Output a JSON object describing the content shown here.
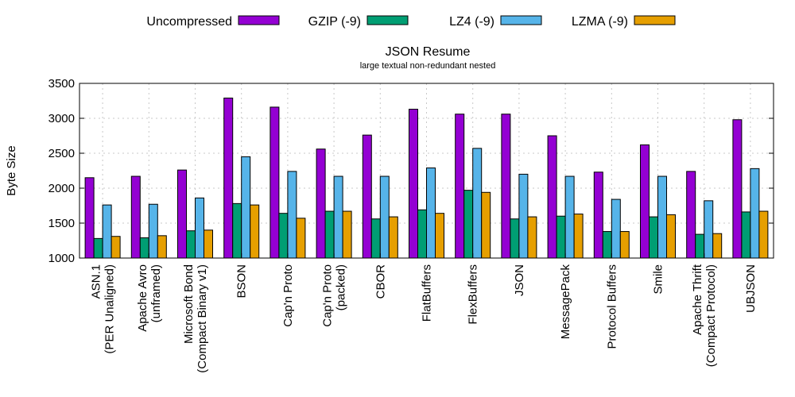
{
  "chart_data": {
    "type": "bar",
    "title": "JSON Resume",
    "subtitle": "large textual non-redundant nested",
    "xlabel": "",
    "ylabel": "Byte Size",
    "ylim": [
      1000,
      3500
    ],
    "yticks": [
      1000,
      1500,
      2000,
      2500,
      3000,
      3500
    ],
    "grid": true,
    "legend_position": "top",
    "categories": [
      [
        "ASN.1",
        "(PER Unaligned)"
      ],
      [
        "Apache Avro",
        "(unframed)"
      ],
      [
        "Microsoft Bond",
        "(Compact Binary v1)"
      ],
      [
        "BSON"
      ],
      [
        "Cap'n Proto"
      ],
      [
        "Cap'n Proto",
        "(packed)"
      ],
      [
        "CBOR"
      ],
      [
        "FlatBuffers"
      ],
      [
        "FlexBuffers"
      ],
      [
        "JSON"
      ],
      [
        "MessagePack"
      ],
      [
        "Protocol Buffers"
      ],
      [
        "Smile"
      ],
      [
        "Apache Thrift",
        "(Compact Protocol)"
      ],
      [
        "UBJSON"
      ]
    ],
    "series": [
      {
        "name": "Uncompressed",
        "color": "#9400d3",
        "values": [
          2150,
          2170,
          2260,
          3290,
          3160,
          2560,
          2760,
          3130,
          3060,
          3060,
          2750,
          2230,
          2620,
          2240,
          2980
        ]
      },
      {
        "name": "GZIP (-9)",
        "color": "#009e73",
        "values": [
          1280,
          1290,
          1390,
          1780,
          1640,
          1670,
          1560,
          1690,
          1970,
          1560,
          1600,
          1380,
          1590,
          1340,
          1660
        ]
      },
      {
        "name": "LZ4 (-9)",
        "color": "#56b4e9",
        "values": [
          1760,
          1770,
          1860,
          2450,
          2240,
          2170,
          2170,
          2290,
          2570,
          2200,
          2170,
          1840,
          2170,
          1820,
          2280
        ]
      },
      {
        "name": "LZMA (-9)",
        "color": "#e69f00",
        "values": [
          1310,
          1320,
          1400,
          1760,
          1570,
          1670,
          1590,
          1640,
          1940,
          1590,
          1630,
          1380,
          1620,
          1350,
          1670
        ]
      }
    ]
  }
}
